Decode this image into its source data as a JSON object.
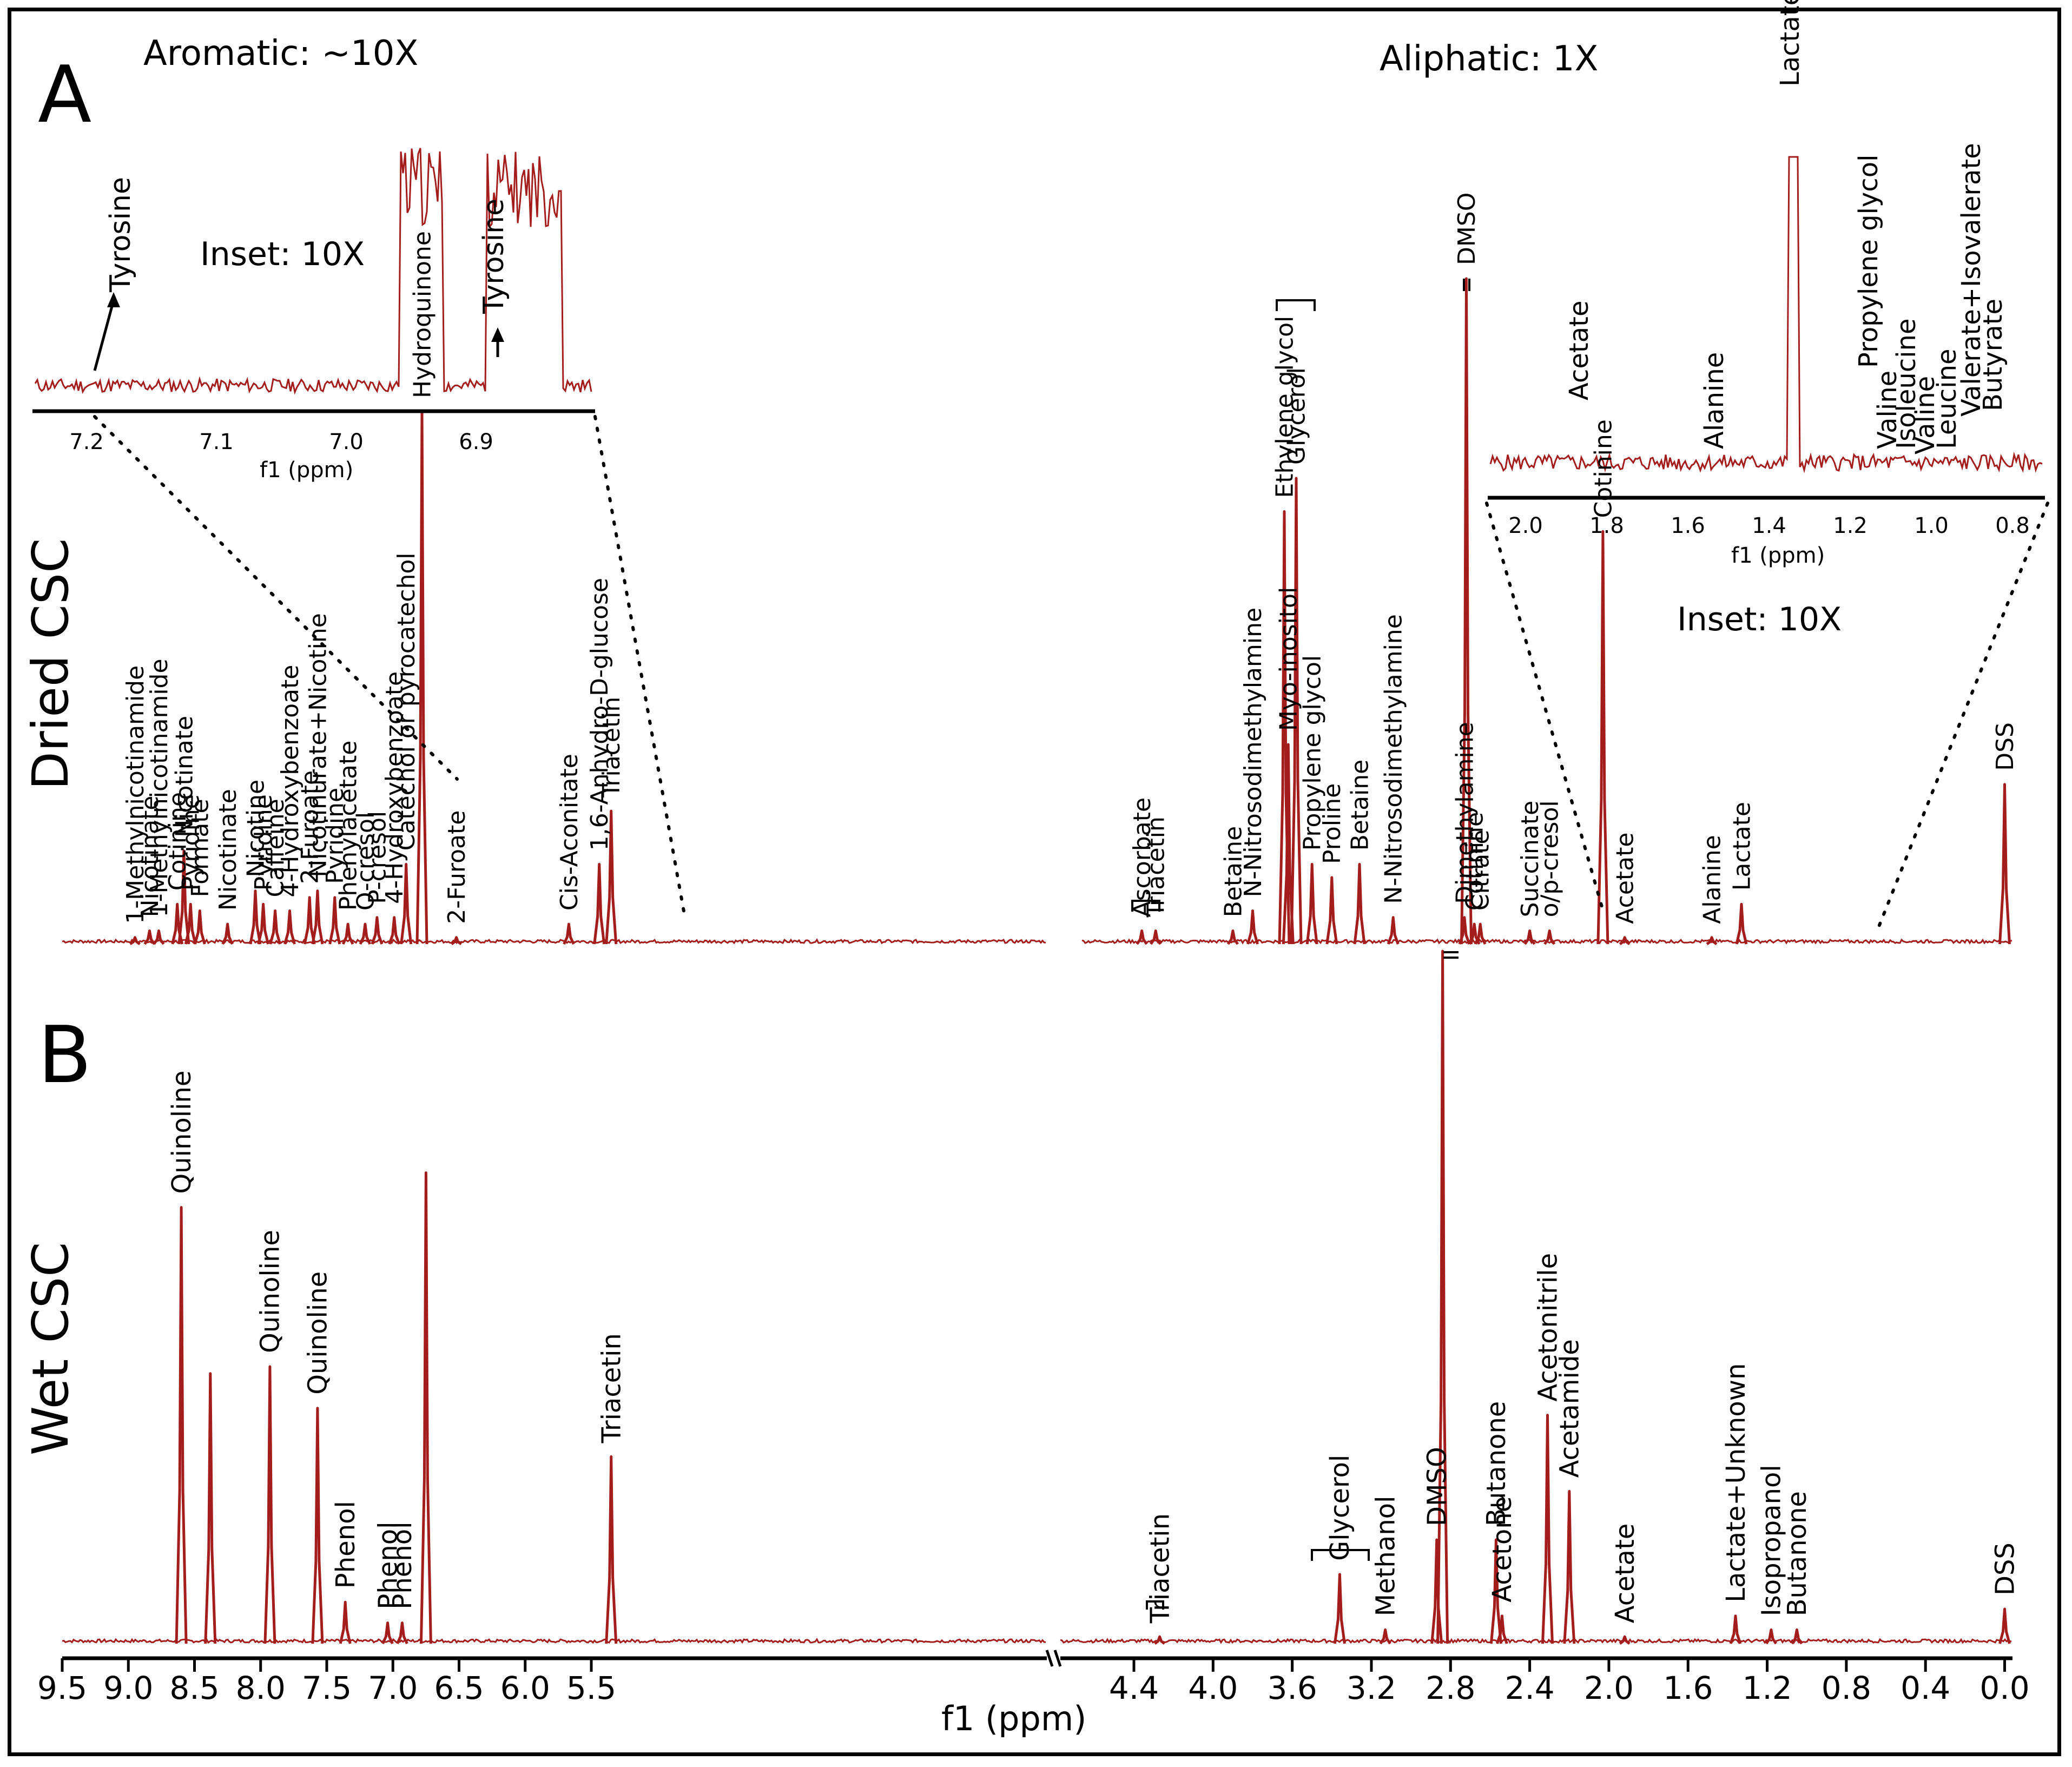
{
  "chart_data": {
    "type": "line",
    "colors": {
      "spectrum": "#a41d1d",
      "text": "#000000"
    },
    "x_axis": {
      "label": "f1 (ppm)",
      "ticks_left": [
        "9.5",
        "9.0",
        "8.5",
        "8.0",
        "7.5",
        "7.0",
        "6.5",
        "6.0",
        "5.5"
      ],
      "ticks_right": [
        "4.4",
        "4.0",
        "3.6",
        "3.2",
        "2.8",
        "2.4",
        "2.0",
        "1.6",
        "1.2",
        "0.8",
        "0.4",
        "0.0"
      ],
      "break_between": [
        5.2,
        4.6
      ]
    },
    "panel_a": {
      "letter": "A",
      "sample": "Dried CSC",
      "region_left": "Aromatic: ~10X",
      "region_right": "Aliphatic: 1X",
      "peaks": [
        {
          "ppm": 8.95,
          "height": 0.01,
          "label": "1-Methylnicotinamide"
        },
        {
          "ppm": 8.84,
          "height": 0.02,
          "label": "Nicotinate"
        },
        {
          "ppm": 8.77,
          "height": 0.02,
          "label": "1-Methylnicotinamide"
        },
        {
          "ppm": 8.63,
          "height": 0.06,
          "label": "Cotinine"
        },
        {
          "ppm": 8.58,
          "height": 0.14,
          "label": "Nicotinate"
        },
        {
          "ppm": 8.53,
          "height": 0.06,
          "label": "Pyridine"
        },
        {
          "ppm": 8.46,
          "height": 0.05,
          "label": "Formate"
        },
        {
          "ppm": 8.25,
          "height": 0.03,
          "label": "Nicotinate"
        },
        {
          "ppm": 8.04,
          "height": 0.08,
          "label": "Nicotine"
        },
        {
          "ppm": 7.98,
          "height": 0.06,
          "label": "Pyridine"
        },
        {
          "ppm": 7.89,
          "height": 0.05,
          "label": "Caffeine"
        },
        {
          "ppm": 7.78,
          "height": 0.05,
          "label": "4-Hydroxybenzoate"
        },
        {
          "ppm": 7.63,
          "height": 0.07,
          "label": "2-Furoate"
        },
        {
          "ppm": 7.57,
          "height": 0.08,
          "label": "Nicotinurate+Nicotine"
        },
        {
          "ppm": 7.44,
          "height": 0.07,
          "label": "Pyridine"
        },
        {
          "ppm": 7.34,
          "height": 0.03,
          "label": "Phenylacetate"
        },
        {
          "ppm": 7.21,
          "height": 0.03,
          "label": "O-cresol"
        },
        {
          "ppm": 7.12,
          "height": 0.04,
          "label": "P-cresol"
        },
        {
          "ppm": 6.99,
          "height": 0.04,
          "label": "4-Hydroxybenzoate"
        },
        {
          "ppm": 6.9,
          "height": 0.12,
          "label": "Catechol or pyrocatechol"
        },
        {
          "ppm": 6.78,
          "height": 0.8,
          "label": "Hydroquinone"
        },
        {
          "ppm": 6.52,
          "height": 0.01,
          "label": "2-Furoate"
        },
        {
          "ppm": 5.67,
          "height": 0.03,
          "label": "Cis-Aconitate"
        },
        {
          "ppm": 5.44,
          "height": 0.12,
          "label": "1,6-Anhydro-D-glucose"
        },
        {
          "ppm": 5.35,
          "height": 0.2,
          "label": "Triacetin"
        },
        {
          "ppm": 4.36,
          "height": 0.02,
          "label": "Ascorbate"
        },
        {
          "ppm": 4.29,
          "height": 0.02,
          "label": "Triacetin"
        },
        {
          "ppm": 3.9,
          "height": 0.02,
          "label": "Betaine"
        },
        {
          "ppm": 3.8,
          "height": 0.05,
          "label": "N-Nitrosodimethylamine"
        },
        {
          "ppm": 3.64,
          "height": 0.65,
          "label": "Ethylene glycol"
        },
        {
          "ppm": 3.58,
          "height": 0.7,
          "label": "Glycerol"
        },
        {
          "ppm": 3.62,
          "height": 0.3,
          "label": "Myo-inositol"
        },
        {
          "ppm": 3.5,
          "height": 0.12,
          "label": "Propylene glycol"
        },
        {
          "ppm": 3.4,
          "height": 0.1,
          "label": "Proline"
        },
        {
          "ppm": 3.26,
          "height": 0.12,
          "label": "Betaine"
        },
        {
          "ppm": 3.09,
          "height": 0.04,
          "label": "N-Nitrosodimethylamine"
        },
        {
          "ppm": 2.72,
          "height": 1.0,
          "label": "DMSO"
        },
        {
          "ppm": 2.73,
          "height": 0.04,
          "label": "Dimethylamine"
        },
        {
          "ppm": 2.68,
          "height": 0.03,
          "label": "Cotinine"
        },
        {
          "ppm": 2.65,
          "height": 0.03,
          "label": "Citrate"
        },
        {
          "ppm": 2.4,
          "height": 0.02,
          "label": "Succinate"
        },
        {
          "ppm": 2.3,
          "height": 0.02,
          "label": "o/p-cresol"
        },
        {
          "ppm": 2.03,
          "height": 0.62,
          "label": "Cotinine"
        },
        {
          "ppm": 1.92,
          "height": 0.01,
          "label": "Acetate"
        },
        {
          "ppm": 1.48,
          "height": 0.01,
          "label": "Alanine"
        },
        {
          "ppm": 1.33,
          "height": 0.06,
          "label": "Lactate"
        },
        {
          "ppm": 0.0,
          "height": 0.24,
          "label": "DSS"
        }
      ],
      "inset_aromatic": {
        "title": "Inset: 10X",
        "xlabel": "f1 (ppm)",
        "ticks": [
          "7.2",
          "7.1",
          "7.0",
          "6.9"
        ],
        "annotations": [
          "Tyrosine",
          "Tyrosine"
        ]
      },
      "inset_aliphatic": {
        "title": "Inset: 10X",
        "xlabel": "f1 (ppm)",
        "ticks": [
          "2.0",
          "1.8",
          "1.6",
          "1.4",
          "1.2",
          "1.0",
          "0.8"
        ],
        "annotations": [
          "Acetate",
          "Alanine",
          "Lactate",
          "Propylene glycol",
          "Valine",
          "Isoleucine",
          "Valine",
          "Leucine",
          "Valerate+Isovalerate",
          "Butyrate"
        ]
      }
    },
    "panel_b": {
      "letter": "B",
      "sample": "Wet CSC",
      "peaks": [
        {
          "ppm": 8.6,
          "height": 0.63,
          "label": "Quinoline"
        },
        {
          "ppm": 8.38,
          "height": 0.39
        },
        {
          "ppm": 7.93,
          "height": 0.4,
          "label": "Quinoline"
        },
        {
          "ppm": 7.57,
          "height": 0.34,
          "label": "Quinoline"
        },
        {
          "ppm": 7.36,
          "height": 0.06,
          "label": "Phenol"
        },
        {
          "ppm": 7.04,
          "height": 0.03,
          "label": "Phenol"
        },
        {
          "ppm": 6.93,
          "height": 0.03,
          "label": "Phenol"
        },
        {
          "ppm": 6.75,
          "height": 0.68
        },
        {
          "ppm": 5.35,
          "height": 0.27,
          "label": "Triacetin"
        },
        {
          "ppm": 4.27,
          "height": 0.01,
          "label": "Triacetin"
        },
        {
          "ppm": 3.36,
          "height": 0.1,
          "label": "Glycerol"
        },
        {
          "ppm": 3.13,
          "height": 0.02,
          "label": "Methanol"
        },
        {
          "ppm": 2.87,
          "height": 0.15,
          "label": "DMSO"
        },
        {
          "ppm": 2.84,
          "height": 1.0
        },
        {
          "ppm": 2.57,
          "height": 0.15,
          "label": "Butanone"
        },
        {
          "ppm": 2.54,
          "height": 0.04,
          "label": "Acetone"
        },
        {
          "ppm": 2.31,
          "height": 0.33,
          "label": "Acetonitrile"
        },
        {
          "ppm": 2.2,
          "height": 0.22,
          "label": "Acetamide"
        },
        {
          "ppm": 1.92,
          "height": 0.01,
          "label": "Acetate"
        },
        {
          "ppm": 1.36,
          "height": 0.04,
          "label": "Lactate+Unknown"
        },
        {
          "ppm": 1.18,
          "height": 0.02,
          "label": "Isopropanol"
        },
        {
          "ppm": 1.05,
          "height": 0.02,
          "label": "Butanone"
        },
        {
          "ppm": 0.0,
          "height": 0.05,
          "label": "DSS"
        }
      ]
    }
  }
}
